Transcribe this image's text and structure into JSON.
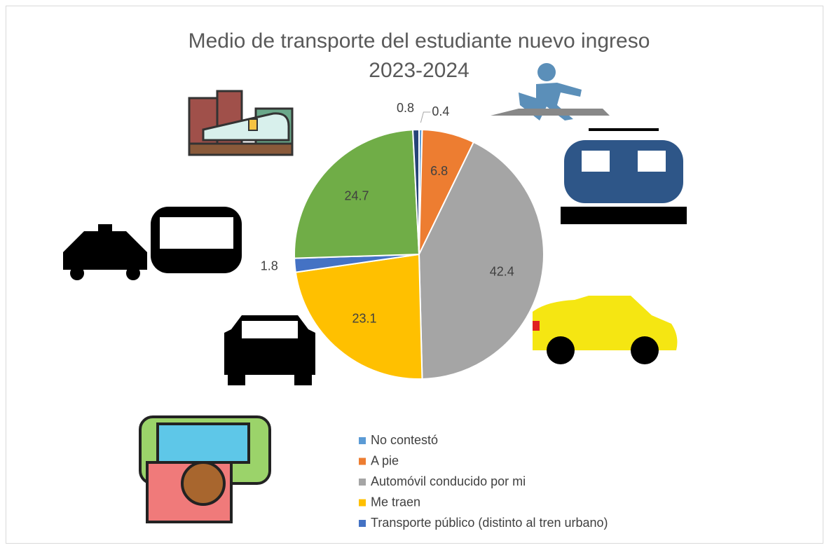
{
  "chart_data": {
    "type": "pie",
    "title": "Medio de transporte del estudiante nuevo ingreso 2023-2024",
    "categories": [
      "No contestó",
      "A pie",
      "Automóvil conducido por mi",
      "Me traen",
      "Transporte público (distinto al tren urbano)",
      null,
      null
    ],
    "values": [
      0.4,
      6.8,
      42.4,
      23.1,
      1.8,
      24.7,
      0.8
    ],
    "colors": [
      "#5b9bd5",
      "#ed7d31",
      "#a5a5a5",
      "#ffc000",
      "#4472c4",
      "#70ad47",
      "#264478"
    ]
  }
}
